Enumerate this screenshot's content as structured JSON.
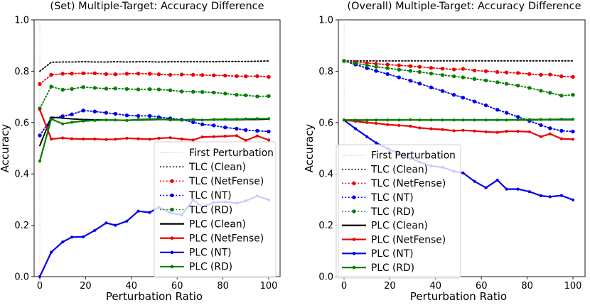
{
  "figure": {
    "background": "#ffffff",
    "text_color": "#000000",
    "axis_color": "#000000"
  },
  "chart_data": [
    {
      "type": "line",
      "title": "(Set) Multiple-Target: Accuracy Difference",
      "xlabel": "Perturbation Ratio",
      "ylabel": "Accuracy",
      "xlim": [
        0,
        100
      ],
      "ylim": [
        0.0,
        1.0
      ],
      "xticks": [
        "0",
        "20",
        "40",
        "60",
        "80",
        "100"
      ],
      "xtick_values": [
        0,
        20,
        40,
        60,
        80,
        100
      ],
      "yticks": [
        "0.0",
        "0.2",
        "0.4",
        "0.6",
        "0.8",
        "1.0"
      ],
      "ytick_values": [
        0.0,
        0.2,
        0.4,
        0.6,
        0.8,
        1.0
      ],
      "grid": false,
      "legend_position": "lower right",
      "first_perturbation": {
        "label": "First Perturbation",
        "x": 0,
        "color": "#ffb5a3"
      },
      "x": [
        0,
        5,
        10,
        14,
        19,
        24,
        29,
        33,
        38,
        43,
        48,
        52,
        57,
        62,
        67,
        71,
        76,
        81,
        86,
        90,
        95,
        100
      ],
      "series": [
        {
          "name": "TLC (Clean)",
          "color": "#000000",
          "line": "dotted",
          "marker": false,
          "values": [
            0.8,
            0.835,
            0.836,
            0.836,
            0.837,
            0.836,
            0.836,
            0.837,
            0.836,
            0.837,
            0.837,
            0.836,
            0.837,
            0.837,
            0.837,
            0.837,
            0.837,
            0.838,
            0.838,
            0.838,
            0.839,
            0.84
          ]
        },
        {
          "name": "TLC (NetFense)",
          "color": "#ee0000",
          "line": "dotted",
          "marker": true,
          "values": [
            0.75,
            0.786,
            0.79,
            0.791,
            0.792,
            0.792,
            0.789,
            0.788,
            0.79,
            0.791,
            0.79,
            0.788,
            0.786,
            0.787,
            0.786,
            0.785,
            0.784,
            0.783,
            0.781,
            0.78,
            0.781,
            0.778
          ]
        },
        {
          "name": "TLC (NT)",
          "color": "#0000ee",
          "line": "dotted",
          "marker": true,
          "values": [
            0.55,
            0.616,
            0.625,
            0.632,
            0.647,
            0.643,
            0.638,
            0.634,
            0.628,
            0.626,
            0.626,
            0.621,
            0.616,
            0.611,
            0.601,
            0.593,
            0.589,
            0.581,
            0.576,
            0.571,
            0.568,
            0.565
          ]
        },
        {
          "name": "TLC (RD)",
          "color": "#008000",
          "line": "dotted",
          "marker": true,
          "values": [
            0.655,
            0.74,
            0.728,
            0.731,
            0.738,
            0.735,
            0.732,
            0.733,
            0.731,
            0.729,
            0.73,
            0.729,
            0.726,
            0.721,
            0.72,
            0.719,
            0.717,
            0.713,
            0.708,
            0.706,
            0.702,
            0.703
          ]
        },
        {
          "name": "PLC (Clean)",
          "color": "#000000",
          "line": "solid",
          "marker": false,
          "values": [
            0.51,
            0.621,
            0.617,
            0.614,
            0.612,
            0.611,
            0.61,
            0.609,
            0.609,
            0.61,
            0.611,
            0.612,
            0.612,
            0.611,
            0.61,
            0.61,
            0.611,
            0.611,
            0.611,
            0.612,
            0.612,
            0.613
          ]
        },
        {
          "name": "PLC (NetFense)",
          "color": "#ee0000",
          "line": "solid",
          "marker": true,
          "values": [
            0.65,
            0.536,
            0.54,
            0.537,
            0.536,
            0.536,
            0.534,
            0.535,
            0.539,
            0.537,
            0.535,
            0.539,
            0.541,
            0.536,
            0.532,
            0.544,
            0.545,
            0.547,
            0.549,
            0.53,
            0.548,
            0.532
          ]
        },
        {
          "name": "PLC (NT)",
          "color": "#0000ee",
          "line": "solid",
          "marker": true,
          "values": [
            0.0,
            0.095,
            0.135,
            0.154,
            0.155,
            0.18,
            0.209,
            0.2,
            0.216,
            0.255,
            0.25,
            0.27,
            0.249,
            0.24,
            0.299,
            0.271,
            0.289,
            0.291,
            0.286,
            0.295,
            0.314,
            0.299
          ]
        },
        {
          "name": "PLC (RD)",
          "color": "#008000",
          "line": "solid",
          "marker": true,
          "values": [
            0.45,
            0.614,
            0.595,
            0.601,
            0.606,
            0.608,
            0.61,
            0.61,
            0.608,
            0.612,
            0.613,
            0.614,
            0.61,
            0.61,
            0.612,
            0.61,
            0.612,
            0.613,
            0.613,
            0.614,
            0.615,
            0.615
          ]
        }
      ]
    },
    {
      "type": "line",
      "title": "(Overall) Multiple-Target: Accuracy Difference",
      "xlabel": "Perturbation Ratio",
      "ylabel": "Accuracy",
      "xlim": [
        0,
        100
      ],
      "ylim": [
        0.0,
        1.0
      ],
      "xticks": [
        "0",
        "20",
        "40",
        "60",
        "80",
        "100"
      ],
      "xtick_values": [
        0,
        20,
        40,
        60,
        80,
        100
      ],
      "yticks": [
        "0.0",
        "0.2",
        "0.4",
        "0.6",
        "0.8",
        "1.0"
      ],
      "ytick_values": [
        0.0,
        0.2,
        0.4,
        0.6,
        0.8,
        1.0
      ],
      "grid": false,
      "legend_position": "lower left",
      "first_perturbation": {
        "label": "First Perturbation",
        "x": 0,
        "color": "#ffb5a3"
      },
      "x": [
        0,
        5,
        10,
        14,
        19,
        24,
        29,
        33,
        38,
        43,
        48,
        52,
        57,
        62,
        67,
        71,
        76,
        81,
        86,
        90,
        95,
        100
      ],
      "series": [
        {
          "name": "TLC (Clean)",
          "color": "#000000",
          "line": "dotted",
          "marker": false,
          "values": [
            0.84,
            0.84,
            0.84,
            0.84,
            0.84,
            0.84,
            0.84,
            0.84,
            0.84,
            0.84,
            0.84,
            0.84,
            0.84,
            0.84,
            0.84,
            0.84,
            0.84,
            0.84,
            0.84,
            0.84,
            0.84,
            0.84
          ]
        },
        {
          "name": "TLC (NetFense)",
          "color": "#ee0000",
          "line": "dotted",
          "marker": true,
          "values": [
            0.84,
            0.836,
            0.832,
            0.829,
            0.826,
            0.823,
            0.82,
            0.817,
            0.813,
            0.81,
            0.807,
            0.809,
            0.803,
            0.8,
            0.797,
            0.795,
            0.793,
            0.789,
            0.786,
            0.787,
            0.78,
            0.778
          ]
        },
        {
          "name": "TLC (NT)",
          "color": "#0000ee",
          "line": "dotted",
          "marker": true,
          "values": [
            0.84,
            0.826,
            0.812,
            0.801,
            0.789,
            0.776,
            0.763,
            0.752,
            0.737,
            0.723,
            0.708,
            0.697,
            0.682,
            0.667,
            0.65,
            0.638,
            0.622,
            0.607,
            0.59,
            0.578,
            0.568,
            0.565
          ]
        },
        {
          "name": "TLC (RD)",
          "color": "#008000",
          "line": "dotted",
          "marker": true,
          "values": [
            0.84,
            0.831,
            0.823,
            0.817,
            0.812,
            0.806,
            0.801,
            0.797,
            0.791,
            0.785,
            0.78,
            0.776,
            0.77,
            0.764,
            0.757,
            0.751,
            0.744,
            0.735,
            0.724,
            0.716,
            0.705,
            0.708
          ]
        },
        {
          "name": "PLC (Clean)",
          "color": "#000000",
          "line": "solid",
          "marker": false,
          "values": [
            0.61,
            0.61,
            0.61,
            0.61,
            0.61,
            0.61,
            0.61,
            0.61,
            0.61,
            0.61,
            0.61,
            0.61,
            0.61,
            0.61,
            0.61,
            0.61,
            0.61,
            0.61,
            0.611,
            0.611,
            0.611,
            0.611
          ]
        },
        {
          "name": "PLC (NetFense)",
          "color": "#ee0000",
          "line": "solid",
          "marker": true,
          "values": [
            0.61,
            0.605,
            0.6,
            0.597,
            0.592,
            0.589,
            0.586,
            0.579,
            0.576,
            0.573,
            0.568,
            0.57,
            0.567,
            0.564,
            0.562,
            0.566,
            0.566,
            0.564,
            0.545,
            0.556,
            0.537,
            0.535
          ]
        },
        {
          "name": "PLC (NT)",
          "color": "#0000ee",
          "line": "solid",
          "marker": true,
          "values": [
            0.61,
            0.576,
            0.545,
            0.521,
            0.499,
            0.48,
            0.461,
            0.446,
            0.431,
            0.426,
            0.41,
            0.404,
            0.371,
            0.346,
            0.376,
            0.341,
            0.341,
            0.331,
            0.315,
            0.311,
            0.316,
            0.299
          ]
        },
        {
          "name": "PLC (RD)",
          "color": "#008000",
          "line": "solid",
          "marker": true,
          "values": [
            0.61,
            0.609,
            0.609,
            0.61,
            0.61,
            0.61,
            0.611,
            0.61,
            0.61,
            0.61,
            0.61,
            0.61,
            0.61,
            0.61,
            0.61,
            0.61,
            0.611,
            0.612,
            0.612,
            0.612,
            0.613,
            0.613
          ]
        }
      ]
    }
  ]
}
